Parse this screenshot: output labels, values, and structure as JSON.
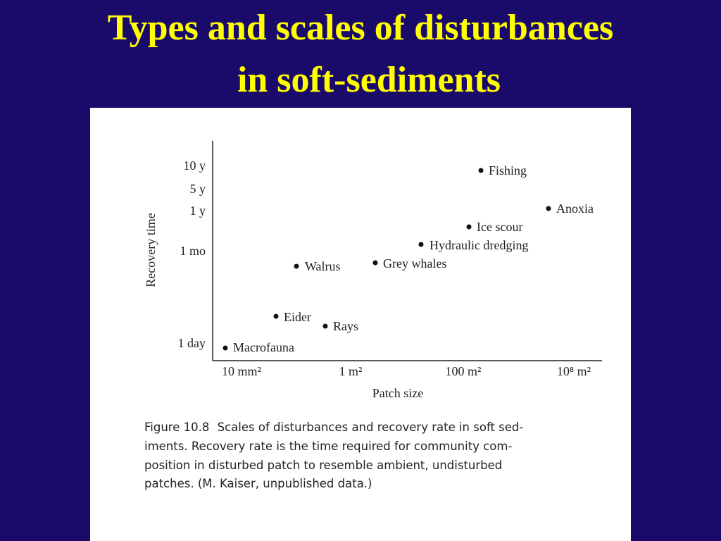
{
  "title": {
    "lines": [
      "Types and scales of disturbances",
      "in soft-sediments"
    ]
  },
  "figure": {
    "y_axis_label": "Recovery time",
    "y_ticks": [
      "10 y",
      "5 y",
      "1 y",
      "1 mo",
      "1 day"
    ],
    "x_axis_label": "Patch size",
    "x_ticks": [
      "10 mm²",
      "1 m²",
      "100 m²",
      "10⁸ m²"
    ],
    "points": [
      {
        "label": "Fishing"
      },
      {
        "label": "Anoxia"
      },
      {
        "label": "Ice scour"
      },
      {
        "label": "Hydraulic dredging"
      },
      {
        "label": "Grey whales"
      },
      {
        "label": "Walrus"
      },
      {
        "label": "Eider"
      },
      {
        "label": "Rays"
      },
      {
        "label": "Macrofauna"
      }
    ]
  },
  "caption": {
    "figure_number": "Figure 10.8",
    "lines": [
      "Scales of disturbances and recovery rate in soft sed-",
      "iments. Recovery rate is the time required for community com-",
      "position in disturbed patch to resemble ambient, undisturbed",
      "patches. (M. Kaiser, unpublished data.)"
    ]
  }
}
